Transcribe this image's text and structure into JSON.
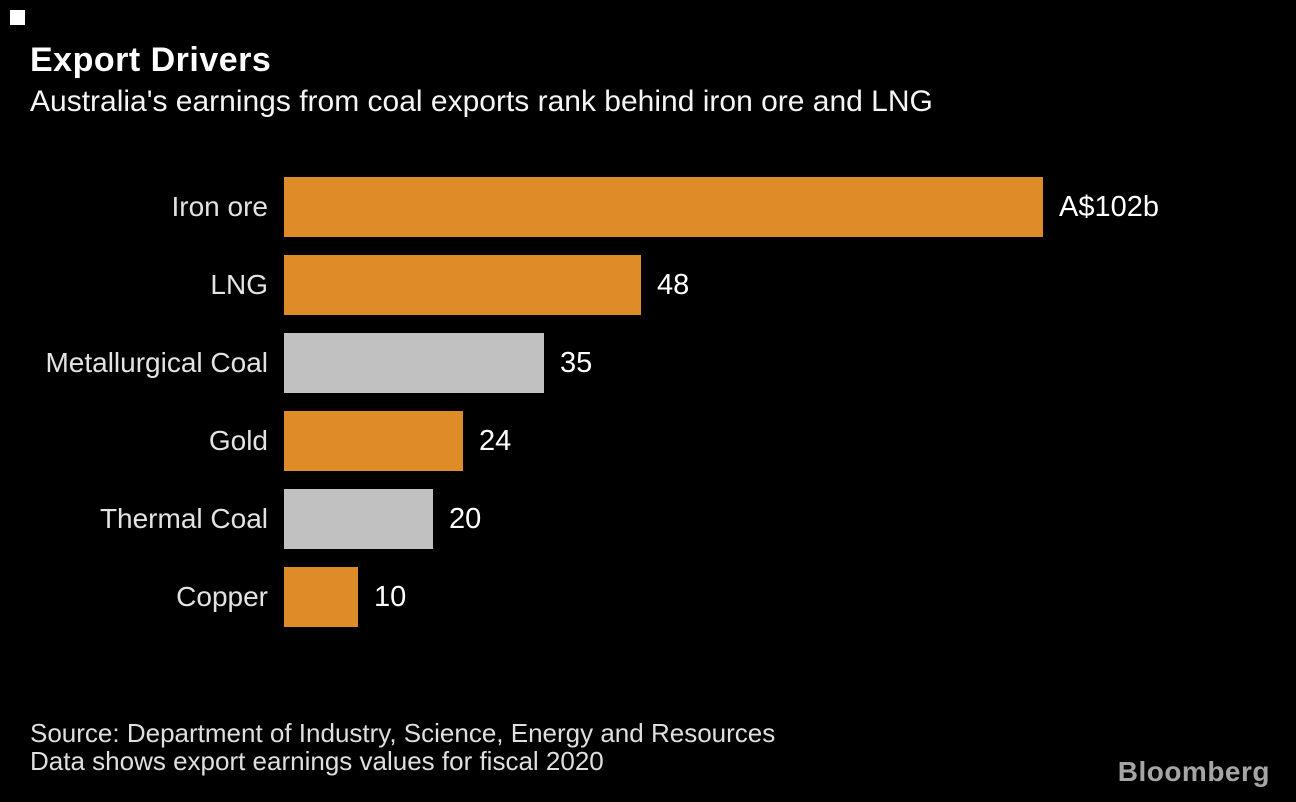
{
  "page": {
    "background": "#000000",
    "corner_mark_color": "#FFFFFF"
  },
  "chart_data": {
    "type": "bar",
    "orientation": "horizontal",
    "title": "Export Drivers",
    "subtitle": "Australia's earnings from coal exports rank behind iron ore and LNG",
    "categories": [
      "Iron ore",
      "LNG",
      "Metallurgical Coal",
      "Gold",
      "Thermal Coal",
      "Copper"
    ],
    "values": [
      102,
      48,
      35,
      24,
      20,
      10
    ],
    "value_labels": [
      "A$102b",
      "48",
      "35",
      "24",
      "20",
      "10"
    ],
    "bar_color_keys": [
      "orange",
      "orange",
      "gray",
      "orange",
      "gray",
      "orange"
    ],
    "colors": {
      "orange": "#DD8C28",
      "gray": "#C1C1C1"
    },
    "xlim": [
      0,
      102
    ],
    "grid": false,
    "legend": false
  },
  "footer": {
    "source_line1": "Source: Department of Industry, Science, Energy and Resources",
    "source_line2": "Data shows export earnings values for fiscal 2020",
    "logo_text": "Bloomberg"
  }
}
